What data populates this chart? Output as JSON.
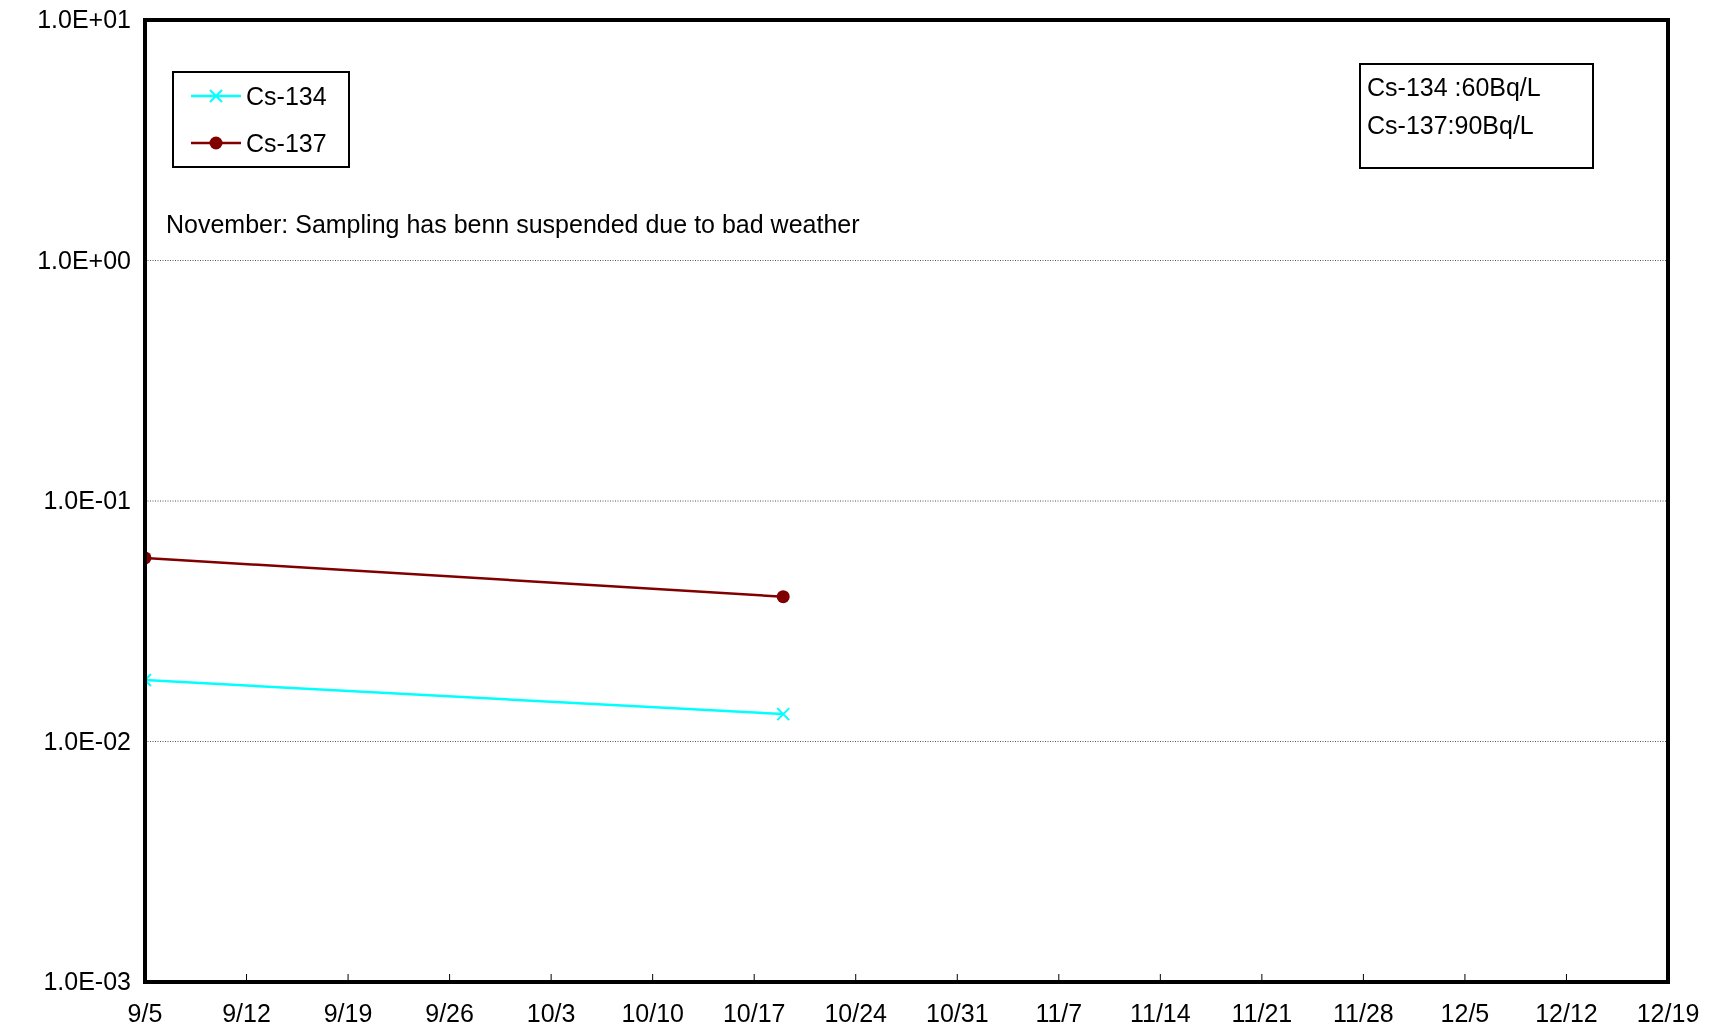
{
  "chart_data": {
    "type": "line",
    "x": [
      "--09-05",
      "--10-19"
    ],
    "series": [
      {
        "name": "Cs-134",
        "color": "#00ffff",
        "marker": "cross",
        "values": [
          0.018,
          0.013
        ]
      },
      {
        "name": "Cs-137",
        "color": "#800000",
        "marker": "circle",
        "values": [
          0.058,
          0.04
        ]
      }
    ],
    "xlim": [
      "--09-05",
      "--12-19"
    ],
    "xticks": [
      {
        "value": "--09-05",
        "label": "9/5"
      },
      {
        "value": "--09-12",
        "label": "9/12"
      },
      {
        "value": "--09-19",
        "label": "9/19"
      },
      {
        "value": "--09-26",
        "label": "9/26"
      },
      {
        "value": "--10-03",
        "label": "10/3"
      },
      {
        "value": "--10-10",
        "label": "10/10"
      },
      {
        "value": "--10-17",
        "label": "10/17"
      },
      {
        "value": "--10-24",
        "label": "10/24"
      },
      {
        "value": "--10-31",
        "label": "10/31"
      },
      {
        "value": "--11-07",
        "label": "11/7"
      },
      {
        "value": "--11-14",
        "label": "11/14"
      },
      {
        "value": "--11-21",
        "label": "11/21"
      },
      {
        "value": "--11-28",
        "label": "11/28"
      },
      {
        "value": "--12-05",
        "label": "12/5"
      },
      {
        "value": "--12-12",
        "label": "12/12"
      },
      {
        "value": "--12-19",
        "label": "12/19"
      }
    ],
    "ylim": [
      0.001,
      10
    ],
    "yticks": [
      {
        "value": 0.001,
        "label": "1.0E-03"
      },
      {
        "value": 0.01,
        "label": "1.0E-02"
      },
      {
        "value": 0.1,
        "label": "1.0E-01"
      },
      {
        "value": 1,
        "label": "1.0E+00"
      },
      {
        "value": 10,
        "label": "1.0E+01"
      }
    ],
    "log": "y",
    "grid": "y",
    "legend": "top left",
    "line_style": "solid",
    "annotations": [
      "November: Sampling has benn suspended due to bad weather",
      "Cs-134 :60Bq/L",
      "Cs-137:90Bq/L"
    ]
  }
}
